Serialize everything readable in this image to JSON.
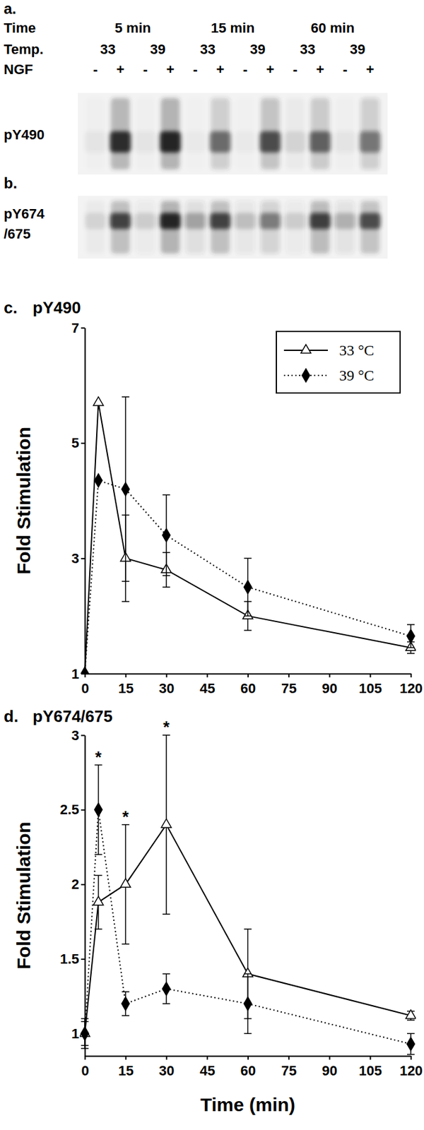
{
  "blots": {
    "header": [
      {
        "label": "Time",
        "groups": [
          "5 min",
          "15 min",
          "60 min"
        ]
      },
      {
        "label": "Temp.",
        "groups": [
          "33",
          "39",
          "33",
          "39",
          "33",
          "39"
        ]
      },
      {
        "label": "NGF",
        "groups": [
          "-",
          "+",
          "-",
          "+",
          "-",
          "+",
          "-",
          "+",
          "-",
          "+",
          "-",
          "+"
        ]
      }
    ],
    "panels": [
      {
        "letter": "a.",
        "label": [
          "pY490"
        ],
        "intensity": [
          0.05,
          0.9,
          0.05,
          0.95,
          0.03,
          0.55,
          0.03,
          0.7,
          0.1,
          0.6,
          0.05,
          0.5
        ]
      },
      {
        "letter": "b.",
        "label": [
          "pY674",
          "/675"
        ],
        "intensity": [
          0.1,
          0.75,
          0.15,
          0.95,
          0.3,
          0.75,
          0.2,
          0.45,
          0.15,
          0.8,
          0.25,
          0.7
        ]
      }
    ]
  },
  "chart_data": [
    {
      "type": "line",
      "letter": "c.",
      "title": "pY490",
      "ylabel": "Fold Stimulation",
      "x": [
        0,
        5,
        15,
        30,
        60,
        120
      ],
      "xlim": [
        0,
        120
      ],
      "xticks": [
        0,
        15,
        30,
        45,
        60,
        75,
        90,
        105,
        120
      ],
      "ylim": [
        1,
        7
      ],
      "yticks": [
        1,
        3,
        5,
        7
      ],
      "legend": "top-right",
      "series": [
        {
          "name": "33 °C",
          "color": "#000000",
          "marker": "open-triangle",
          "line_style": "solid",
          "values": [
            1,
            5.7,
            3.0,
            2.8,
            2.0,
            1.45
          ],
          "errors": [
            null,
            null,
            0.75,
            0.3,
            0.25,
            0.1
          ]
        },
        {
          "name": "39 °C",
          "color": "#000000",
          "marker": "diamond",
          "line_style": "dotted",
          "values": [
            1,
            4.35,
            4.2,
            3.4,
            2.5,
            1.65
          ],
          "errors": [
            null,
            null,
            1.6,
            0.7,
            0.5,
            0.2
          ]
        }
      ]
    },
    {
      "type": "line",
      "letter": "d.",
      "title": "pY674/675",
      "ylabel": "Fold Stimulation",
      "xlabel": "Time (min)",
      "x": [
        0,
        5,
        15,
        30,
        60,
        120
      ],
      "xlim": [
        0,
        120
      ],
      "xticks": [
        0,
        15,
        30,
        45,
        60,
        75,
        90,
        105,
        120
      ],
      "ylim": [
        0.85,
        3
      ],
      "yticks": [
        1,
        1.5,
        2,
        2.5,
        3
      ],
      "series": [
        {
          "color": "#000000",
          "marker": "open-triangle",
          "line_style": "solid",
          "values": [
            1,
            1.88,
            2.0,
            2.4,
            1.4,
            1.12
          ],
          "errors": [
            0.1,
            0.18,
            0.4,
            0.6,
            0.3,
            0.03
          ]
        },
        {
          "color": "#000000",
          "marker": "diamond",
          "line_style": "dotted",
          "values": [
            1,
            2.5,
            1.2,
            1.3,
            1.2,
            0.93
          ],
          "errors": [
            0.08,
            0.3,
            0.08,
            0.1,
            0.2,
            0.07
          ]
        }
      ],
      "annotations": [
        {
          "text": "*",
          "x": 5
        },
        {
          "text": "*",
          "x": 15
        },
        {
          "text": "*",
          "x": 30
        }
      ]
    }
  ]
}
